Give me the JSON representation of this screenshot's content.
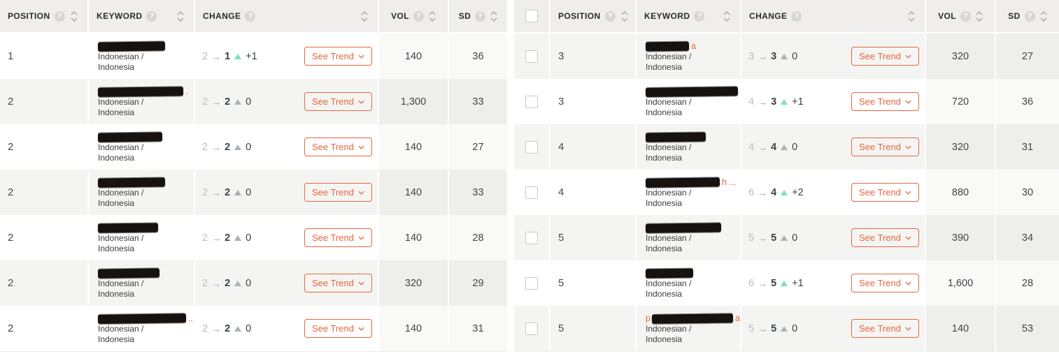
{
  "shared": {
    "see_trend_label": "See Trend",
    "locale_line1": "Indonesian /",
    "locale_line2": "Indonesia"
  },
  "icons": {
    "help": "?",
    "arrow_right": "→",
    "sort_asc": "chevron-up-icon",
    "sort_desc": "chevron-down-icon",
    "positive_change": "triangle-up-icon",
    "trend_dropdown": "chevron-down-icon"
  },
  "colors": {
    "accent_orange": "#e7663f",
    "positive_green": "#7de0b2",
    "neutral_triangle_gray": "#a9b2b8",
    "header_bg": "#efeeec",
    "row_shaded_bg": "#f4f5f2"
  },
  "tables": [
    {
      "name": "keyword-rank-table-1",
      "has_select_column": false,
      "first_row_shaded": false,
      "columns": [
        {
          "key": "position",
          "label": "POSITION",
          "help": true,
          "sortable": true
        },
        {
          "key": "keyword",
          "label": "KEYWORD",
          "help": true,
          "sortable": true
        },
        {
          "key": "change",
          "label": "CHANGE",
          "help": true,
          "sortable": true
        },
        {
          "key": "vol",
          "label": "VOL",
          "help": true,
          "sortable": true
        },
        {
          "key": "sd",
          "label": "SD",
          "help": true,
          "sortable": true
        }
      ],
      "rows": [
        {
          "position": "1",
          "keyword": {
            "redacted": true,
            "blob_width": 96,
            "prefix": "",
            "suffix": ""
          },
          "change": {
            "from": "2",
            "to": "1",
            "delta": "+1",
            "direction": "up"
          },
          "vol": "140",
          "sd": "36"
        },
        {
          "position": "2",
          "keyword": {
            "redacted": true,
            "blob_width": 122,
            "prefix": "",
            "suffix": "."
          },
          "change": {
            "from": "2",
            "to": "2",
            "delta": "0",
            "direction": "flat"
          },
          "vol": "1,300",
          "sd": "33"
        },
        {
          "position": "2",
          "keyword": {
            "redacted": true,
            "blob_width": 92,
            "prefix": "",
            "suffix": ""
          },
          "change": {
            "from": "2",
            "to": "2",
            "delta": "0",
            "direction": "flat"
          },
          "vol": "140",
          "sd": "27"
        },
        {
          "position": "2",
          "keyword": {
            "redacted": true,
            "blob_width": 96,
            "prefix": "",
            "suffix": ""
          },
          "change": {
            "from": "2",
            "to": "2",
            "delta": "0",
            "direction": "flat"
          },
          "vol": "140",
          "sd": "33"
        },
        {
          "position": "2",
          "keyword": {
            "redacted": true,
            "blob_width": 86,
            "prefix": "",
            "suffix": ""
          },
          "change": {
            "from": "2",
            "to": "2",
            "delta": "0",
            "direction": "flat"
          },
          "vol": "140",
          "sd": "28"
        },
        {
          "position": "2",
          "keyword": {
            "redacted": true,
            "blob_width": 88,
            "prefix": "",
            "suffix": ""
          },
          "change": {
            "from": "2",
            "to": "2",
            "delta": "0",
            "direction": "flat"
          },
          "vol": "320",
          "sd": "29"
        },
        {
          "position": "2",
          "keyword": {
            "redacted": true,
            "blob_width": 126,
            "prefix": "",
            "suffix": "..."
          },
          "change": {
            "from": "2",
            "to": "2",
            "delta": "0",
            "direction": "flat"
          },
          "vol": "140",
          "sd": "31"
        }
      ]
    },
    {
      "name": "keyword-rank-table-2",
      "has_select_column": true,
      "first_row_shaded": true,
      "columns": [
        {
          "key": "position",
          "label": "POSITION",
          "help": true,
          "sortable": true
        },
        {
          "key": "keyword",
          "label": "KEYWORD",
          "help": true,
          "sortable": true
        },
        {
          "key": "change",
          "label": "CHANGE",
          "help": true,
          "sortable": true
        },
        {
          "key": "vol",
          "label": "VOL",
          "help": true,
          "sortable": true
        },
        {
          "key": "sd",
          "label": "SD",
          "help": true,
          "sortable": true
        }
      ],
      "rows": [
        {
          "position": "3",
          "keyword": {
            "redacted": true,
            "blob_width": 62,
            "prefix": "",
            "suffix": "a"
          },
          "change": {
            "from": "3",
            "to": "3",
            "delta": "0",
            "direction": "flat"
          },
          "vol": "320",
          "sd": "27"
        },
        {
          "position": "3",
          "keyword": {
            "redacted": true,
            "blob_width": 132,
            "prefix": "",
            "suffix": ""
          },
          "change": {
            "from": "4",
            "to": "3",
            "delta": "+1",
            "direction": "up"
          },
          "vol": "720",
          "sd": "36"
        },
        {
          "position": "4",
          "keyword": {
            "redacted": true,
            "blob_width": 86,
            "prefix": "",
            "suffix": ""
          },
          "change": {
            "from": "4",
            "to": "4",
            "delta": "0",
            "direction": "flat"
          },
          "vol": "320",
          "sd": "31"
        },
        {
          "position": "4",
          "keyword": {
            "redacted": true,
            "blob_width": 106,
            "prefix": "",
            "suffix": "h ..."
          },
          "change": {
            "from": "6",
            "to": "4",
            "delta": "+2",
            "direction": "up"
          },
          "vol": "880",
          "sd": "30"
        },
        {
          "position": "5",
          "keyword": {
            "redacted": true,
            "blob_width": 108,
            "prefix": "",
            "suffix": ""
          },
          "change": {
            "from": "5",
            "to": "5",
            "delta": "0",
            "direction": "flat"
          },
          "vol": "390",
          "sd": "34"
        },
        {
          "position": "5",
          "keyword": {
            "redacted": true,
            "blob_width": 68,
            "prefix": "",
            "suffix": ""
          },
          "change": {
            "from": "6",
            "to": "5",
            "delta": "+1",
            "direction": "up"
          },
          "vol": "1,600",
          "sd": "28"
        },
        {
          "position": "5",
          "keyword": {
            "redacted": true,
            "blob_width": 116,
            "prefix": "p",
            "suffix": "a"
          },
          "change": {
            "from": "5",
            "to": "5",
            "delta": "0",
            "direction": "flat"
          },
          "vol": "140",
          "sd": "53"
        }
      ]
    }
  ]
}
